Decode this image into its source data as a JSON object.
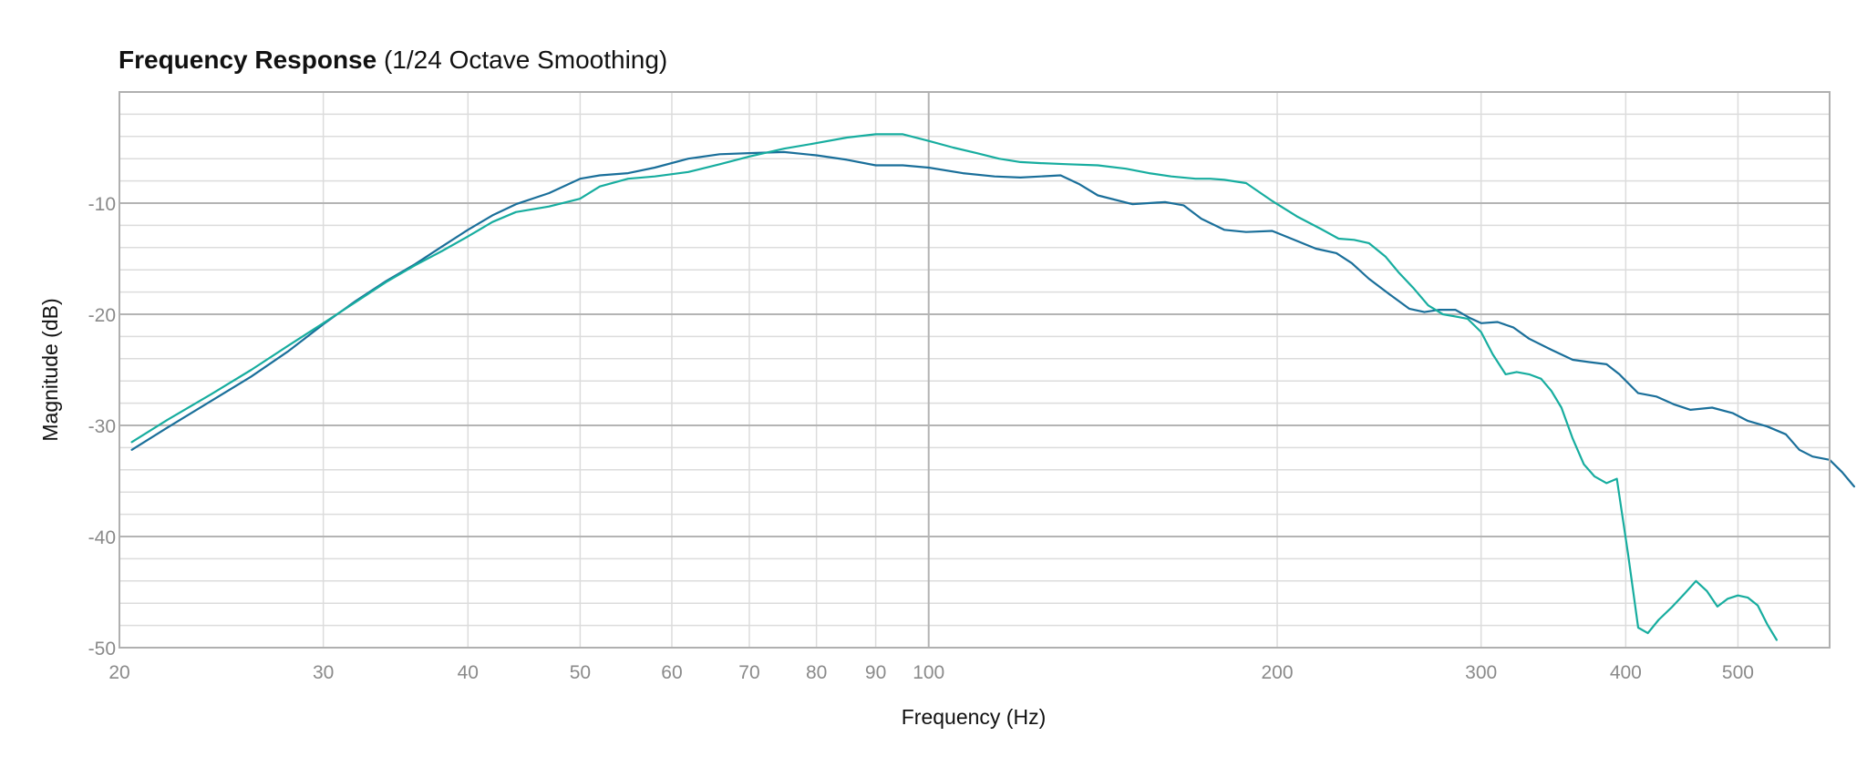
{
  "chart_data": {
    "type": "line",
    "title": "Frequency Response",
    "subtitle": "(1/24 Octave Smoothing)",
    "xlabel": "Frequency (Hz)",
    "ylabel": "Magnitude (dB)",
    "x_scale": "log",
    "xlim": [
      20,
      600
    ],
    "ylim": [
      -50,
      0
    ],
    "x_ticks": [
      20,
      30,
      40,
      50,
      60,
      70,
      80,
      90,
      100,
      200,
      300,
      400,
      500
    ],
    "y_ticks": [
      -10,
      -20,
      -30,
      -40,
      -50
    ],
    "grid": true,
    "colors": {
      "series_1": "#1a6f9a",
      "series_2": "#17ad9f",
      "grid_major": "#b4b4b4",
      "grid_minor": "#dcdcdc"
    },
    "series": [
      {
        "color": "#1a6f9a",
        "points": [
          [
            20.5,
            -32.2
          ],
          [
            22,
            -30.2
          ],
          [
            24,
            -27.8
          ],
          [
            26,
            -25.6
          ],
          [
            28,
            -23.3
          ],
          [
            30,
            -20.9
          ],
          [
            32,
            -18.8
          ],
          [
            34,
            -17
          ],
          [
            36,
            -15.5
          ],
          [
            38,
            -13.9
          ],
          [
            40,
            -12.4
          ],
          [
            42,
            -11.1
          ],
          [
            44,
            -10.1
          ],
          [
            47,
            -9.1
          ],
          [
            50,
            -7.8
          ],
          [
            52,
            -7.5
          ],
          [
            55,
            -7.3
          ],
          [
            58,
            -6.8
          ],
          [
            62,
            -6
          ],
          [
            66,
            -5.6
          ],
          [
            70,
            -5.5
          ],
          [
            75,
            -5.4
          ],
          [
            80,
            -5.7
          ],
          [
            85,
            -6.1
          ],
          [
            90,
            -6.6
          ],
          [
            95,
            -6.6
          ],
          [
            100,
            -6.8
          ],
          [
            107,
            -7.3
          ],
          [
            114,
            -7.6
          ],
          [
            120,
            -7.7
          ],
          [
            130,
            -7.5
          ],
          [
            135,
            -8.3
          ],
          [
            140,
            -9.3
          ],
          [
            150,
            -10.1
          ],
          [
            160,
            -9.9
          ],
          [
            166,
            -10.2
          ],
          [
            172,
            -11.4
          ],
          [
            180,
            -12.4
          ],
          [
            188,
            -12.6
          ],
          [
            198,
            -12.5
          ],
          [
            208,
            -13.4
          ],
          [
            216,
            -14.1
          ],
          [
            225,
            -14.5
          ],
          [
            232,
            -15.4
          ],
          [
            240,
            -16.8
          ],
          [
            250,
            -18.2
          ],
          [
            260,
            -19.5
          ],
          [
            268,
            -19.8
          ],
          [
            276,
            -19.6
          ],
          [
            285,
            -19.6
          ],
          [
            293,
            -20.3
          ],
          [
            300,
            -20.8
          ],
          [
            310,
            -20.7
          ],
          [
            320,
            -21.2
          ],
          [
            330,
            -22.2
          ],
          [
            345,
            -23.2
          ],
          [
            360,
            -24.1
          ],
          [
            372,
            -24.3
          ],
          [
            385,
            -24.5
          ],
          [
            395,
            -25.4
          ],
          [
            410,
            -27.1
          ],
          [
            425,
            -27.4
          ],
          [
            440,
            -28.1
          ],
          [
            455,
            -28.6
          ],
          [
            475,
            -28.4
          ],
          [
            495,
            -28.9
          ],
          [
            510,
            -29.6
          ],
          [
            530,
            -30.1
          ],
          [
            550,
            -30.8
          ],
          [
            565,
            -32.2
          ],
          [
            580,
            -32.8
          ],
          [
            600,
            -33.1
          ],
          [
            615,
            -34.2
          ],
          [
            630,
            -35.5
          ]
        ]
      },
      {
        "color": "#17ad9f",
        "points": [
          [
            20.5,
            -31.5
          ],
          [
            22,
            -29.5
          ],
          [
            24,
            -27.2
          ],
          [
            26,
            -25
          ],
          [
            28,
            -22.8
          ],
          [
            30,
            -20.8
          ],
          [
            32,
            -18.9
          ],
          [
            34,
            -17.1
          ],
          [
            36,
            -15.6
          ],
          [
            38,
            -14.3
          ],
          [
            40,
            -13
          ],
          [
            42,
            -11.7
          ],
          [
            44,
            -10.8
          ],
          [
            47,
            -10.3
          ],
          [
            50,
            -9.6
          ],
          [
            52,
            -8.5
          ],
          [
            55,
            -7.8
          ],
          [
            58,
            -7.6
          ],
          [
            62,
            -7.2
          ],
          [
            66,
            -6.5
          ],
          [
            70,
            -5.8
          ],
          [
            75,
            -5.1
          ],
          [
            80,
            -4.6
          ],
          [
            85,
            -4.1
          ],
          [
            90,
            -3.8
          ],
          [
            95,
            -3.8
          ],
          [
            100,
            -4.4
          ],
          [
            105,
            -5
          ],
          [
            110,
            -5.5
          ],
          [
            115,
            -6
          ],
          [
            120,
            -6.3
          ],
          [
            125,
            -6.4
          ],
          [
            132,
            -6.5
          ],
          [
            140,
            -6.6
          ],
          [
            148,
            -6.9
          ],
          [
            155,
            -7.3
          ],
          [
            162,
            -7.6
          ],
          [
            170,
            -7.8
          ],
          [
            175,
            -7.8
          ],
          [
            180,
            -7.9
          ],
          [
            188,
            -8.2
          ],
          [
            198,
            -9.8
          ],
          [
            208,
            -11.2
          ],
          [
            218,
            -12.3
          ],
          [
            226,
            -13.2
          ],
          [
            233,
            -13.3
          ],
          [
            240,
            -13.6
          ],
          [
            248,
            -14.8
          ],
          [
            255,
            -16.3
          ],
          [
            262,
            -17.6
          ],
          [
            270,
            -19.2
          ],
          [
            278,
            -20
          ],
          [
            285,
            -20.2
          ],
          [
            292,
            -20.4
          ],
          [
            300,
            -21.6
          ],
          [
            307,
            -23.6
          ],
          [
            315,
            -25.4
          ],
          [
            322,
            -25.2
          ],
          [
            330,
            -25.4
          ],
          [
            338,
            -25.8
          ],
          [
            345,
            -26.9
          ],
          [
            352,
            -28.4
          ],
          [
            360,
            -31.2
          ],
          [
            368,
            -33.5
          ],
          [
            376,
            -34.6
          ],
          [
            385,
            -35.2
          ],
          [
            393,
            -34.8
          ],
          [
            402,
            -41.7
          ],
          [
            410,
            -48.2
          ],
          [
            418,
            -48.7
          ],
          [
            427,
            -47.5
          ],
          [
            438,
            -46.4
          ],
          [
            450,
            -45.1
          ],
          [
            460,
            -44
          ],
          [
            470,
            -44.9
          ],
          [
            480,
            -46.3
          ],
          [
            490,
            -45.6
          ],
          [
            500,
            -45.3
          ],
          [
            510,
            -45.5
          ],
          [
            520,
            -46.2
          ],
          [
            530,
            -47.9
          ],
          [
            540,
            -49.3
          ]
        ]
      }
    ]
  }
}
